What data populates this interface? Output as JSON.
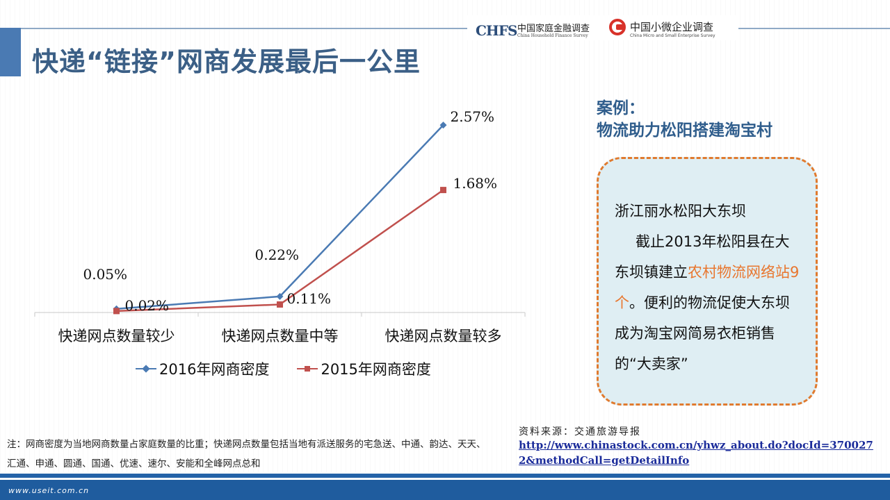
{
  "slide": {
    "title": "快递“链接”网商发展最后一公里",
    "logos": {
      "chfs_abbr": "CHFS",
      "chfs_cn": "中国家庭金融调查",
      "chfs_en": "China Household Finance Survey",
      "cmse_cn": "中国小微企业调查",
      "cmse_en": "China Micro and Small Enterprise Survey"
    }
  },
  "chart_data": {
    "type": "line",
    "categories": [
      "快递网点数量较少",
      "快递网点数量中等",
      "快递网点数量较多"
    ],
    "series": [
      {
        "name": "2016年网商密度",
        "values": [
          0.05,
          0.22,
          2.57
        ],
        "labels": [
          "0.05%",
          "0.22%",
          "2.57%"
        ],
        "color": "#4a7ab3",
        "marker": "diamond"
      },
      {
        "name": "2015年网商密度",
        "values": [
          0.02,
          0.11,
          1.68
        ],
        "labels": [
          "0.02%",
          "0.11%",
          "1.68%"
        ],
        "color": "#c0504d",
        "marker": "square"
      }
    ],
    "ylim": [
      0,
      3
    ],
    "grid": false,
    "legend": "bottom"
  },
  "case": {
    "heading_line1": "案例：",
    "heading_line2": "物流助力松阳搭建淘宝村",
    "line1": "浙江丽水松阳大东坝",
    "p_part1": "截止2013年松阳县在大东坝镇建立",
    "p_highlight1": "农村物流网络站",
    "p_highlight2": "9个",
    "p_part2": "。便利的物流促使大东坝成为淘宝网简易衣柜销售的“大卖家”",
    "highlight_color": "#e8762e"
  },
  "notes": {
    "note_text": "注：网商密度为当地网商数量占家庭数量的比重；快递网点数量包括当地有派送服务的宅急送、中通、韵达、天天、汇通、申通、圆通、国通、优速、速尔、安能和全峰网点总和",
    "source_label": "资料来源：交通旅游导报",
    "source_url": "http://www.chinastock.com.cn/yhwz_about.do?docId=3700272&methodCall=getDetailInfo"
  },
  "footer": {
    "watermark": "www.useit.com.cn"
  }
}
